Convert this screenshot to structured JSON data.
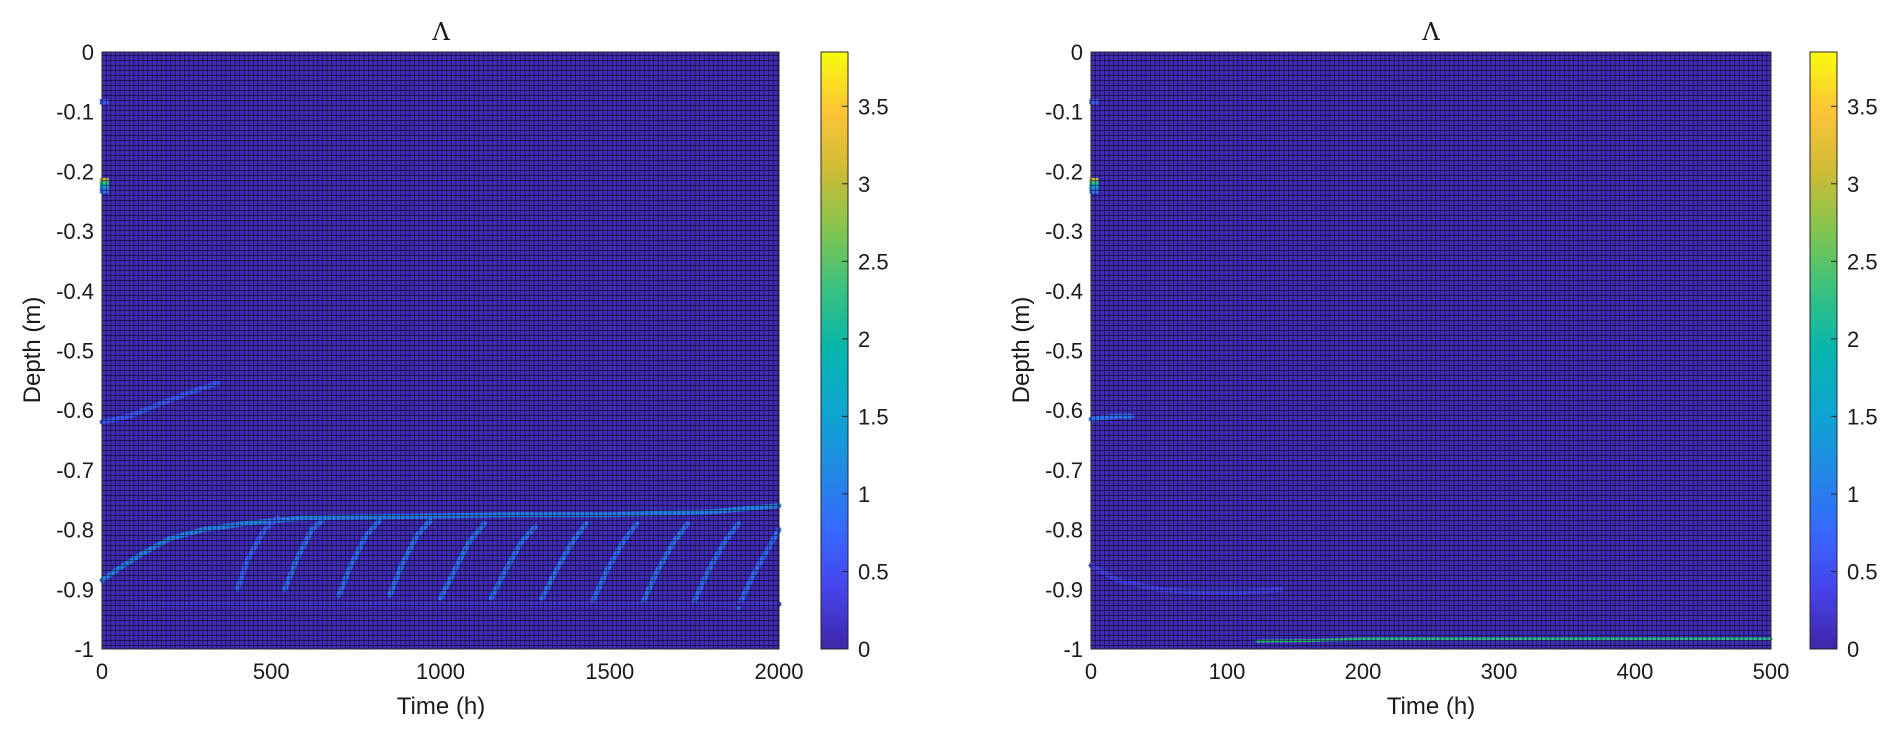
{
  "chart_data": [
    {
      "type": "heatmap",
      "title": "Λ",
      "xlabel": "Time (h)",
      "ylabel": "Depth (m)",
      "xlim": [
        0,
        2000
      ],
      "ylim": [
        -1,
        0
      ],
      "xticks": [
        0,
        500,
        1000,
        1500,
        2000
      ],
      "xtick_labels": [
        "0",
        "500",
        "1000",
        "1500",
        "2000"
      ],
      "yticks": [
        0,
        -0.1,
        -0.2,
        -0.3,
        -0.4,
        -0.5,
        -0.6,
        -0.7,
        -0.8,
        -0.9,
        -1
      ],
      "ytick_labels": [
        "0",
        "-0.1",
        "-0.2",
        "-0.3",
        "-0.4",
        "-0.5",
        "-0.6",
        "-0.7",
        "-0.8",
        "-0.9",
        "-1"
      ],
      "colorbar": {
        "colormap": "parula",
        "range": [
          0,
          3.85
        ],
        "ticks": [
          0,
          0.5,
          1,
          1.5,
          2,
          2.5,
          3,
          3.5
        ],
        "tick_labels": [
          "0",
          "0.5",
          "1",
          "1.5",
          "2",
          "2.5",
          "3",
          "3.5"
        ]
      },
      "grid": true,
      "background_value": 0.08,
      "features": [
        {
          "kind": "spot",
          "time": 10,
          "depth": -0.083,
          "value": 0.6
        },
        {
          "kind": "spot",
          "time": 10,
          "depth": -0.215,
          "value": 3.0
        },
        {
          "kind": "spot",
          "time": 10,
          "depth": -0.22,
          "value": 2.3
        },
        {
          "kind": "spot",
          "time": 10,
          "depth": -0.225,
          "value": 1.6
        },
        {
          "kind": "spot",
          "time": 10,
          "depth": -0.232,
          "value": 0.9
        },
        {
          "kind": "curve",
          "points": [
            [
              0,
              -0.62
            ],
            [
              80,
              -0.61
            ],
            [
              170,
              -0.59
            ],
            [
              260,
              -0.57
            ],
            [
              340,
              -0.555
            ]
          ],
          "value": 0.6
        },
        {
          "kind": "curve",
          "points": [
            [
              0,
              -0.885
            ],
            [
              50,
              -0.865
            ],
            [
              120,
              -0.84
            ],
            [
              200,
              -0.815
            ],
            [
              300,
              -0.8
            ],
            [
              420,
              -0.79
            ],
            [
              600,
              -0.78
            ],
            [
              900,
              -0.778
            ],
            [
              1200,
              -0.775
            ],
            [
              1500,
              -0.775
            ],
            [
              1800,
              -0.77
            ],
            [
              2000,
              -0.76
            ]
          ],
          "value": 1.05
        },
        {
          "kind": "curve",
          "points": [
            [
              400,
              -0.9
            ],
            [
              430,
              -0.85
            ],
            [
              480,
              -0.8
            ],
            [
              520,
              -0.78
            ]
          ],
          "value": 0.7
        },
        {
          "kind": "curve",
          "points": [
            [
              540,
              -0.9
            ],
            [
              575,
              -0.85
            ],
            [
              620,
              -0.8
            ],
            [
              650,
              -0.785
            ]
          ],
          "value": 0.85
        },
        {
          "kind": "curve",
          "points": [
            [
              700,
              -0.91
            ],
            [
              735,
              -0.86
            ],
            [
              780,
              -0.81
            ],
            [
              820,
              -0.785
            ]
          ],
          "value": 0.85
        },
        {
          "kind": "curve",
          "points": [
            [
              850,
              -0.91
            ],
            [
              885,
              -0.86
            ],
            [
              930,
              -0.81
            ],
            [
              970,
              -0.785
            ]
          ],
          "value": 0.9
        },
        {
          "kind": "curve",
          "points": [
            [
              1000,
              -0.915
            ],
            [
              1040,
              -0.87
            ],
            [
              1085,
              -0.82
            ],
            [
              1130,
              -0.79
            ]
          ],
          "value": 0.9
        },
        {
          "kind": "curve",
          "points": [
            [
              1150,
              -0.915
            ],
            [
              1190,
              -0.87
            ],
            [
              1240,
              -0.82
            ],
            [
              1280,
              -0.795
            ]
          ],
          "value": 0.85
        },
        {
          "kind": "curve",
          "points": [
            [
              1300,
              -0.915
            ],
            [
              1340,
              -0.87
            ],
            [
              1390,
              -0.82
            ],
            [
              1430,
              -0.79
            ]
          ],
          "value": 0.9
        },
        {
          "kind": "curve",
          "points": [
            [
              1450,
              -0.92
            ],
            [
              1490,
              -0.87
            ],
            [
              1540,
              -0.82
            ],
            [
              1580,
              -0.79
            ]
          ],
          "value": 0.85
        },
        {
          "kind": "curve",
          "points": [
            [
              1600,
              -0.92
            ],
            [
              1640,
              -0.87
            ],
            [
              1690,
              -0.82
            ],
            [
              1730,
              -0.79
            ]
          ],
          "value": 0.9
        },
        {
          "kind": "curve",
          "points": [
            [
              1750,
              -0.92
            ],
            [
              1790,
              -0.87
            ],
            [
              1840,
              -0.82
            ],
            [
              1880,
              -0.79
            ]
          ],
          "value": 0.85
        },
        {
          "kind": "curve",
          "points": [
            [
              1880,
              -0.93
            ],
            [
              1920,
              -0.88
            ],
            [
              1970,
              -0.83
            ],
            [
              2000,
              -0.8
            ]
          ],
          "value": 0.8
        },
        {
          "kind": "curve",
          "points": [
            [
              100,
              -0.925
            ],
            [
              400,
              -0.925
            ],
            [
              800,
              -0.925
            ],
            [
              1200,
              -0.925
            ],
            [
              1600,
              -0.925
            ],
            [
              2000,
              -0.925
            ]
          ],
          "value": 0.2
        }
      ]
    },
    {
      "type": "heatmap",
      "title": "Λ",
      "xlabel": "Time (h)",
      "ylabel": "Depth (m)",
      "xlim": [
        0,
        500
      ],
      "ylim": [
        -1,
        0
      ],
      "xticks": [
        0,
        100,
        200,
        300,
        400,
        500
      ],
      "xtick_labels": [
        "0",
        "100",
        "200",
        "300",
        "400",
        "500"
      ],
      "yticks": [
        0,
        -0.1,
        -0.2,
        -0.3,
        -0.4,
        -0.5,
        -0.6,
        -0.7,
        -0.8,
        -0.9,
        -1
      ],
      "ytick_labels": [
        "0",
        "-0.1",
        "-0.2",
        "-0.3",
        "-0.4",
        "-0.5",
        "-0.6",
        "-0.7",
        "-0.8",
        "-0.9",
        "-1"
      ],
      "colorbar": {
        "colormap": "parula",
        "range": [
          0,
          3.85
        ],
        "ticks": [
          0,
          0.5,
          1,
          1.5,
          2,
          2.5,
          3,
          3.5
        ],
        "tick_labels": [
          "0",
          "0.5",
          "1",
          "1.5",
          "2",
          "2.5",
          "3",
          "3.5"
        ]
      },
      "grid": true,
      "background_value": 0.08,
      "features": [
        {
          "kind": "spot",
          "time": 3,
          "depth": -0.083,
          "value": 0.6
        },
        {
          "kind": "spot",
          "time": 3,
          "depth": -0.215,
          "value": 3.0
        },
        {
          "kind": "spot",
          "time": 3,
          "depth": -0.22,
          "value": 2.3
        },
        {
          "kind": "spot",
          "time": 3,
          "depth": -0.225,
          "value": 1.6
        },
        {
          "kind": "spot",
          "time": 3,
          "depth": -0.232,
          "value": 0.9
        },
        {
          "kind": "curve",
          "points": [
            [
              0,
              -0.615
            ],
            [
              10,
              -0.612
            ],
            [
              20,
              -0.61
            ],
            [
              30,
              -0.61
            ]
          ],
          "value": 0.9
        },
        {
          "kind": "curve",
          "points": [
            [
              0,
              -0.86
            ],
            [
              20,
              -0.885
            ],
            [
              50,
              -0.9
            ],
            [
              80,
              -0.905
            ],
            [
              110,
              -0.905
            ],
            [
              140,
              -0.9
            ]
          ],
          "value": 0.35
        },
        {
          "kind": "curve",
          "points": [
            [
              122,
              -0.987
            ],
            [
              160,
              -0.986
            ],
            [
              200,
              -0.983
            ],
            [
              300,
              -0.983
            ],
            [
              400,
              -0.983
            ],
            [
              500,
              -0.983
            ]
          ],
          "value": 2.2
        }
      ]
    }
  ]
}
